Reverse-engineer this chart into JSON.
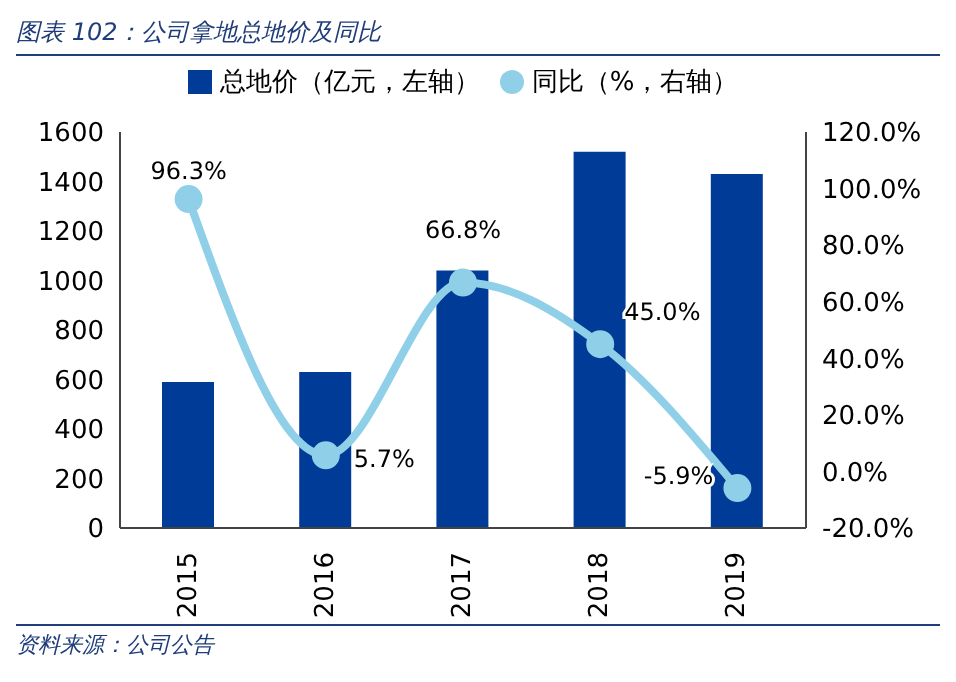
{
  "chart_data": {
    "type": "bar",
    "title": "图表 102：公司拿地总地价及同比",
    "categories": [
      "2015",
      "2016",
      "2017",
      "2018",
      "2019"
    ],
    "series": [
      {
        "name": "总地价（亿元，左轴）",
        "color": "#003b97",
        "values": [
          590,
          630,
          1040,
          1520,
          1430
        ]
      },
      {
        "name": "同比（%，右轴）",
        "type": "line",
        "axis": "y2",
        "color": "#8fcfe8",
        "marker": "circle",
        "values": [
          96.3,
          5.7,
          66.8,
          45.0,
          -5.9
        ],
        "value_labels": [
          "96.3%",
          "5.7%",
          "66.8%",
          "45.0%",
          "-5.9%"
        ]
      }
    ],
    "ylim": [
      0,
      1600
    ],
    "yticks": [
      0,
      200,
      400,
      600,
      800,
      1000,
      1200,
      1400,
      1600
    ],
    "y2lim": [
      -20,
      120
    ],
    "y2ticks": [
      {
        "value": -20,
        "label": "-20.0%"
      },
      {
        "value": 0,
        "label": "0.0%"
      },
      {
        "value": 20,
        "label": "20.0%"
      },
      {
        "value": 40,
        "label": "40.0%"
      },
      {
        "value": 60,
        "label": "60.0%"
      },
      {
        "value": 80,
        "label": "80.0%"
      },
      {
        "value": 100,
        "label": "100.0%"
      },
      {
        "value": 120,
        "label": "120.0%"
      }
    ],
    "grid": false,
    "legend": "top",
    "annotations": [
      "资料来源：公司公告"
    ]
  }
}
